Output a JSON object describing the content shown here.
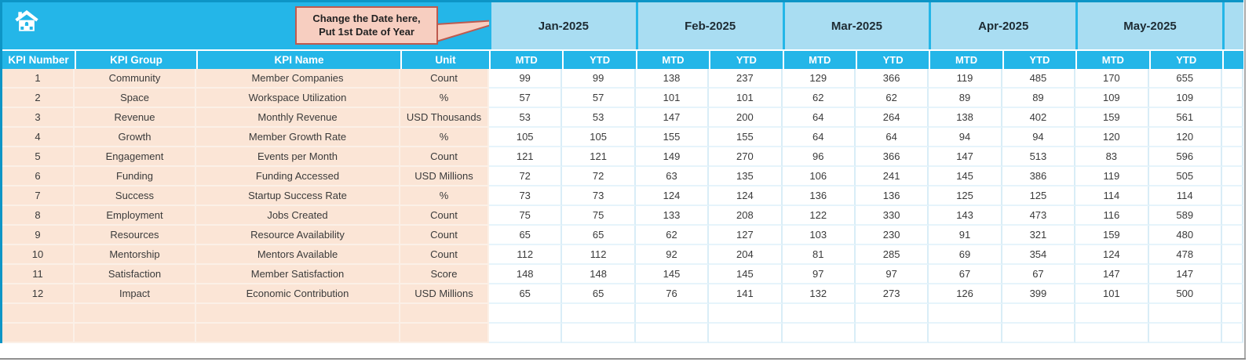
{
  "callout": {
    "line1": "Change the Date here,",
    "line2": "Put 1st Date of Year"
  },
  "columns": {
    "kpi_number": "KPI Number",
    "kpi_group": "KPI Group",
    "kpi_name": "KPI Name",
    "unit": "Unit",
    "mtd": "MTD",
    "ytd": "YTD"
  },
  "months": [
    "Jan-2025",
    "Feb-2025",
    "Mar-2025",
    "Apr-2025",
    "May-2025"
  ],
  "rows": [
    {
      "number": "1",
      "group": "Community",
      "name": "Member Companies",
      "unit": "Count",
      "values": [
        99,
        99,
        138,
        237,
        129,
        366,
        119,
        485,
        170,
        655
      ]
    },
    {
      "number": "2",
      "group": "Space",
      "name": "Workspace Utilization",
      "unit": "%",
      "values": [
        57,
        57,
        101,
        101,
        62,
        62,
        89,
        89,
        109,
        109
      ]
    },
    {
      "number": "3",
      "group": "Revenue",
      "name": "Monthly Revenue",
      "unit": "USD Thousands",
      "values": [
        53,
        53,
        147,
        200,
        64,
        264,
        138,
        402,
        159,
        561
      ]
    },
    {
      "number": "4",
      "group": "Growth",
      "name": "Member Growth Rate",
      "unit": "%",
      "values": [
        105,
        105,
        155,
        155,
        64,
        64,
        94,
        94,
        120,
        120
      ]
    },
    {
      "number": "5",
      "group": "Engagement",
      "name": "Events per Month",
      "unit": "Count",
      "values": [
        121,
        121,
        149,
        270,
        96,
        366,
        147,
        513,
        83,
        596
      ]
    },
    {
      "number": "6",
      "group": "Funding",
      "name": "Funding Accessed",
      "unit": "USD Millions",
      "values": [
        72,
        72,
        63,
        135,
        106,
        241,
        145,
        386,
        119,
        505
      ]
    },
    {
      "number": "7",
      "group": "Success",
      "name": "Startup Success Rate",
      "unit": "%",
      "values": [
        73,
        73,
        124,
        124,
        136,
        136,
        125,
        125,
        114,
        114
      ]
    },
    {
      "number": "8",
      "group": "Employment",
      "name": "Jobs Created",
      "unit": "Count",
      "values": [
        75,
        75,
        133,
        208,
        122,
        330,
        143,
        473,
        116,
        589
      ]
    },
    {
      "number": "9",
      "group": "Resources",
      "name": "Resource Availability",
      "unit": "Count",
      "values": [
        65,
        65,
        62,
        127,
        103,
        230,
        91,
        321,
        159,
        480
      ]
    },
    {
      "number": "10",
      "group": "Mentorship",
      "name": "Mentors Available",
      "unit": "Count",
      "values": [
        112,
        112,
        92,
        204,
        81,
        285,
        69,
        354,
        124,
        478
      ]
    },
    {
      "number": "11",
      "group": "Satisfaction",
      "name": "Member Satisfaction",
      "unit": "Score",
      "values": [
        148,
        148,
        145,
        145,
        97,
        97,
        67,
        67,
        147,
        147
      ]
    },
    {
      "number": "12",
      "group": "Impact",
      "name": "Economic Contribution",
      "unit": "USD Millions",
      "values": [
        65,
        65,
        76,
        141,
        132,
        273,
        126,
        399,
        101,
        500
      ]
    }
  ],
  "empty_row_count": 2,
  "icons": {
    "home": "home-icon"
  },
  "colors": {
    "header_cyan": "#24B6E8",
    "border_teal": "#0D95C6",
    "month_light_blue": "#A9DDF2",
    "left_section_peach": "#FBE5D6",
    "callout_fill": "#F7CEC0",
    "callout_border": "#BE5A4E",
    "value_grid": "#D9EDF7"
  }
}
